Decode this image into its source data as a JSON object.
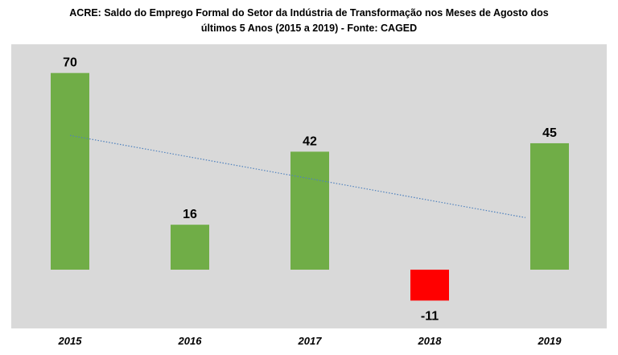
{
  "chart_data": {
    "type": "bar",
    "title_line1": "ACRE: Saldo do Emprego Formal do Setor da Indústria de Transformação nos Meses de Agosto dos",
    "title_line2": "últimos 5 Anos (2015 a 2019) -  Fonte: CAGED",
    "categories": [
      "2015",
      "2016",
      "2017",
      "2018",
      "2019"
    ],
    "values": [
      70,
      16,
      42,
      -11,
      45
    ],
    "data_labels": [
      "70",
      "16",
      "42",
      "-11",
      "45"
    ],
    "trendline": "linear",
    "colors": {
      "positive": "#70AD47",
      "negative": "#FF0000",
      "trendline": "#4F81BD",
      "plot_bg": "#D9D9D9"
    },
    "grid": false,
    "legend": "none"
  }
}
